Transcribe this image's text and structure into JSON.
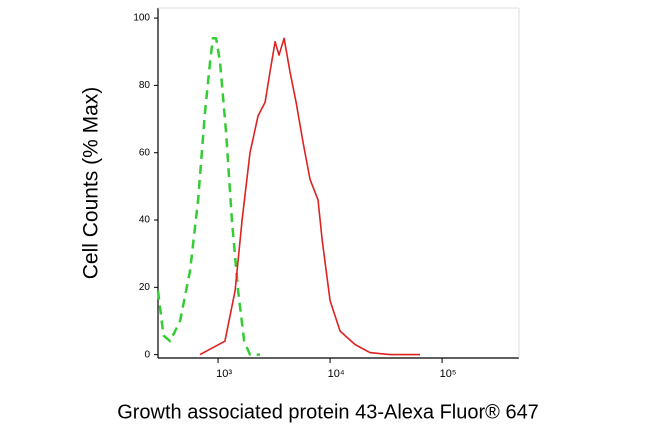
{
  "chart_data": {
    "type": "line",
    "xlabel": "Growth associated protein 43-Alexa Fluor® 647",
    "ylabel": "Cell Counts (% Max)",
    "xscale": "log",
    "xlim": [
      291,
      486000
    ],
    "ylim": [
      -1,
      103
    ],
    "xticks": [
      {
        "value": 1000,
        "label": "10³"
      },
      {
        "value": 10000,
        "label": "10⁴"
      },
      {
        "value": 100000,
        "label": "10⁵"
      }
    ],
    "yticks": [
      0,
      20,
      40,
      60,
      80,
      100
    ],
    "series": [
      {
        "color": "#33cc33",
        "dash": true,
        "x": [
          291,
          326,
          373,
          458,
          563,
          663,
          765,
          850,
          900,
          960,
          1040,
          1180,
          1330,
          1510,
          1710,
          1930,
          2370
        ],
        "values": [
          19,
          5.7,
          4,
          10,
          25,
          46,
          72,
          87,
          94,
          94,
          87,
          66,
          40,
          19,
          4,
          0,
          0
        ]
      },
      {
        "color": "#dd2222",
        "dash": false,
        "x": [
          690,
          1150,
          1420,
          1640,
          1930,
          2280,
          2630,
          2910,
          3230,
          3500,
          3890,
          4390,
          4970,
          5740,
          6630,
          7800,
          8500,
          10000,
          12300,
          16700,
          22700,
          34200,
          63500
        ],
        "values": [
          0,
          4,
          19,
          40,
          60,
          71,
          75,
          84,
          93,
          89,
          94,
          84,
          75,
          63,
          52,
          46,
          34,
          16,
          7,
          3,
          0.6,
          0,
          0
        ]
      }
    ]
  }
}
